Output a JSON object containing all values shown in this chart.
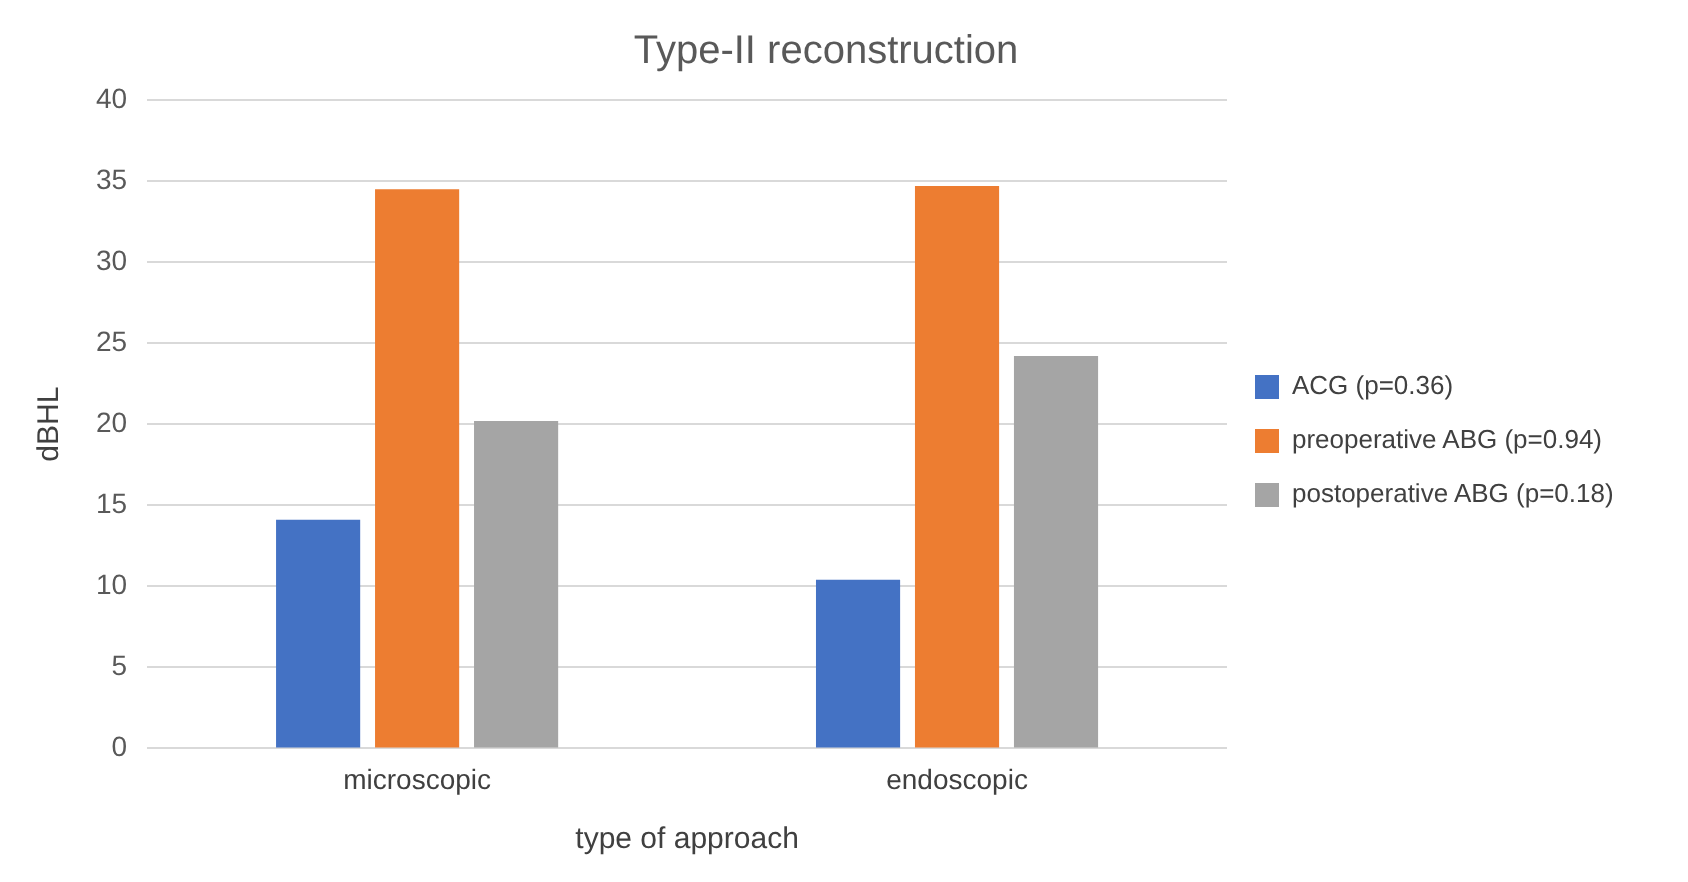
{
  "chart_data": {
    "type": "bar",
    "title": "Type-II reconstruction",
    "xlabel": "type of approach",
    "ylabel": "dBHL",
    "categories": [
      "microscopic",
      "endoscopic"
    ],
    "series": [
      {
        "name": "ACG (p=0.36)",
        "color": "#4472c4",
        "values": [
          14.1,
          10.4
        ]
      },
      {
        "name": "preoperative ABG (p=0.94)",
        "color": "#ed7d31",
        "values": [
          34.5,
          34.7
        ]
      },
      {
        "name": "postoperative ABG (p=0.18)",
        "color": "#a5a5a5",
        "values": [
          20.2,
          24.2
        ]
      }
    ],
    "ylim": [
      0,
      40
    ],
    "yticks": [
      0,
      5,
      10,
      15,
      20,
      25,
      30,
      35,
      40
    ],
    "grid": "y",
    "legend": "right"
  }
}
